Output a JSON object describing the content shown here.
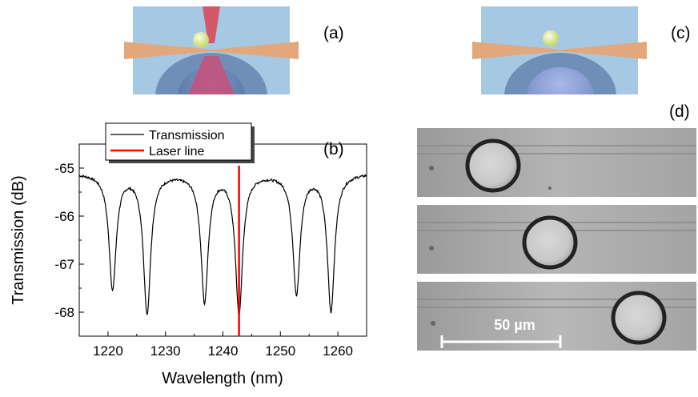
{
  "panels": {
    "a": "(a)",
    "b": "(b)",
    "c": "(c)",
    "d": "(d)"
  },
  "chart_data": {
    "type": "line",
    "xlabel": "Wavelength (nm)",
    "ylabel": "Transmission (dB)",
    "xlim": [
      1215,
      1265
    ],
    "ylim": [
      -68.5,
      -64.5
    ],
    "xticks": [
      1220,
      1230,
      1240,
      1250,
      1260
    ],
    "yticks": [
      -65,
      -66,
      -67,
      -68
    ],
    "legend_position": "top-left",
    "series": [
      {
        "name": "Transmission",
        "color": "#000000",
        "baseline": -65.1,
        "dips": [
          {
            "center": 1220.8,
            "min": -67.5
          },
          {
            "center": 1226.8,
            "min": -68.0
          },
          {
            "center": 1236.8,
            "min": -67.75
          },
          {
            "center": 1242.8,
            "min": -68.0
          },
          {
            "center": 1252.8,
            "min": -67.6
          },
          {
            "center": 1258.8,
            "min": -67.95
          }
        ]
      },
      {
        "name": "Laser line",
        "color": "#ff0000",
        "x": 1242.8
      }
    ]
  },
  "micrographs": {
    "scale_bar_label": "50 µm",
    "frames": 3
  },
  "colors": {
    "cell_bg": "#a8c8e0",
    "fiber": "#e0a070",
    "beam": "#d84860",
    "bead": "#e8f0a0"
  }
}
